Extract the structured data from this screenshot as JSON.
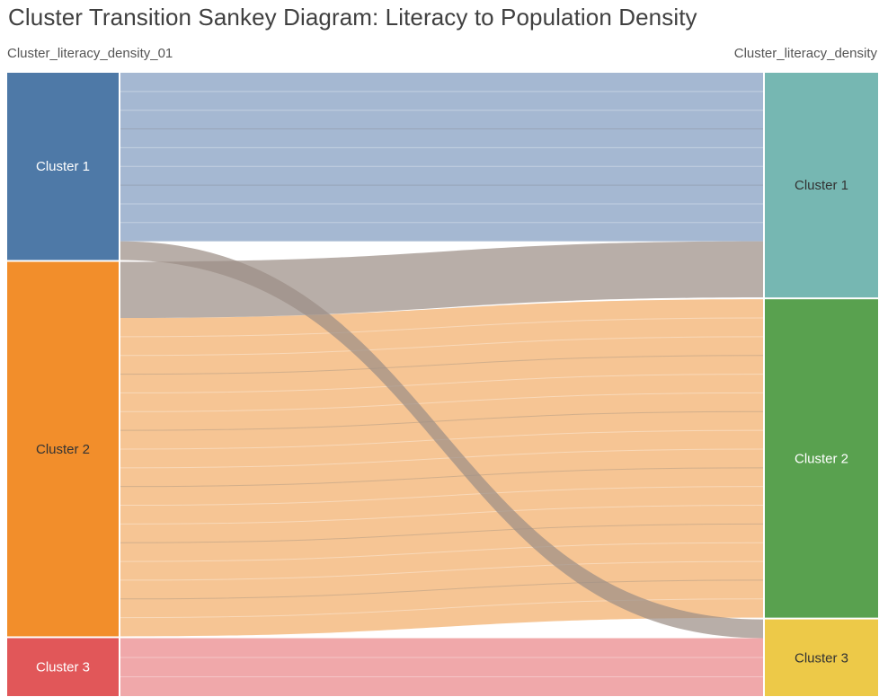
{
  "title": "Cluster Transition Sankey Diagram: Literacy to Population Density",
  "left_axis_label": "Cluster_literacy_density_01",
  "right_axis_label": "Cluster_literacy_density",
  "chart_data": {
    "type": "sankey",
    "left_nodes": [
      {
        "id": "L1",
        "label": "Cluster 1",
        "color": "#4e79a7",
        "text_color": "#ffffff",
        "value": 210
      },
      {
        "id": "L2",
        "label": "Cluster 2",
        "color": "#f28e2b",
        "text_color": "#333333",
        "value": 420
      },
      {
        "id": "L3",
        "label": "Cluster 3",
        "color": "#e15759",
        "text_color": "#ffffff",
        "value": 65
      }
    ],
    "right_nodes": [
      {
        "id": "R1",
        "label": "Cluster 1",
        "color": "#76b7b2",
        "text_color": "#333333",
        "value": 252
      },
      {
        "id": "R2",
        "label": "Cluster 2",
        "color": "#59a14f",
        "text_color": "#ffffff",
        "value": 357
      },
      {
        "id": "R3",
        "label": "Cluster 3",
        "color": "#edc948",
        "text_color": "#333333",
        "value": 86
      }
    ],
    "flows": [
      {
        "source": "L1",
        "target": "R1",
        "value": 189,
        "color": "#a5b8d2"
      },
      {
        "source": "L1",
        "target": "R3",
        "value": 21,
        "color": "#a5b8d2"
      },
      {
        "source": "L2",
        "target": "R1",
        "value": 63,
        "color": "#f6c594"
      },
      {
        "source": "L2",
        "target": "R2",
        "value": 357,
        "color": "#f6c594"
      },
      {
        "source": "L3",
        "target": "R3",
        "value": 65,
        "color": "#f0a8aa"
      }
    ]
  }
}
